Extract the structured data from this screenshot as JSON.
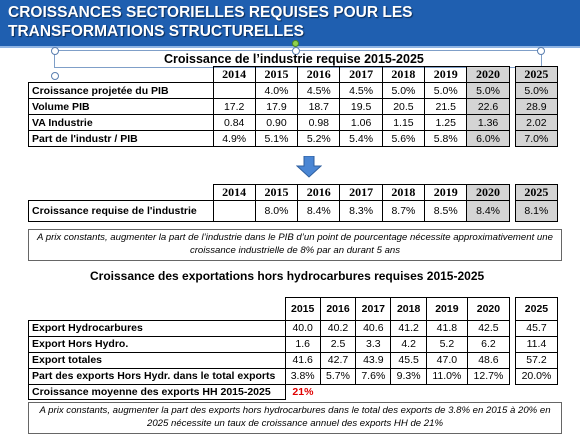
{
  "title": "CROISSANCES SECTORIELLES REQUISES POUR LES TRANSFORMATIONS STRUCTURELLES",
  "section1": {
    "heading": "Croissance de l’industrie requise 2015-2025",
    "years": [
      "2014",
      "2015",
      "2016",
      "2017",
      "2018",
      "2019",
      "2020",
      "2025"
    ],
    "rows": [
      {
        "label": "Croissance projetée du PIB",
        "values": [
          "",
          "4.0%",
          "4.5%",
          "4.5%",
          "5.0%",
          "5.0%",
          "5.0%",
          "5.0%"
        ]
      },
      {
        "label": "Volume PIB",
        "values": [
          "17.2",
          "17.9",
          "18.7",
          "19.5",
          "20.5",
          "21.5",
          "22.6",
          "28.9"
        ]
      },
      {
        "label": "VA Industrie",
        "values": [
          "0.84",
          "0.90",
          "0.98",
          "1.06",
          "1.15",
          "1.25",
          "1.36",
          "2.02"
        ]
      },
      {
        "label": "Part de l'industr  / PIB",
        "values": [
          "4.9%",
          "5.1%",
          "5.2%",
          "5.4%",
          "5.6%",
          "5.8%",
          "6.0%",
          "7.0%"
        ]
      }
    ]
  },
  "section2": {
    "years": [
      "2014",
      "2015",
      "2016",
      "2017",
      "2018",
      "2019",
      "2020",
      "2025"
    ],
    "row": {
      "label": "Croissance requise de l'industrie",
      "values": [
        "",
        "8.0%",
        "8.4%",
        "8.3%",
        "8.7%",
        "8.5%",
        "8.4%",
        "8.1%"
      ]
    },
    "note": "A prix constants, augmenter la part de l’industrie dans le PIB d’un point de pourcentage nécessite approximativement une croissance industrielle de 8% par an durant 5 ans"
  },
  "section3": {
    "heading": "Croissance des exportations hors hydrocarbures requises 2015-2025",
    "years": [
      "2015",
      "2016",
      "2017",
      "2018",
      "2019",
      "2020",
      "2025"
    ],
    "rows": [
      {
        "label": "Export Hydrocarbures",
        "values": [
          "40.0",
          "40.2",
          "40.6",
          "41.2",
          "41.8",
          "42.5",
          "45.7"
        ]
      },
      {
        "label": "Export Hors Hydro.",
        "values": [
          "1.6",
          "2.5",
          "3.3",
          "4.2",
          "5.2",
          "6.2",
          "11.4"
        ]
      },
      {
        "label": "Export totales",
        "values": [
          "41.6",
          "42.7",
          "43.9",
          "45.5",
          "47.0",
          "48.6",
          "57.2"
        ]
      },
      {
        "label": "Part des exports Hors Hydr. dans le total exports",
        "values": [
          "3.8%",
          "5.7%",
          "7.6%",
          "9.3%",
          "11.0%",
          "12.7%",
          "20.0%"
        ]
      }
    ],
    "moyenne": {
      "label": "Croissance moyenne des exports HH 2015-2025",
      "value": "21%"
    },
    "note": "A prix constants, augmenter la part des exports hors hydrocarbures dans le total des exports de 3.8% en 2015 à 20% en 2025 nécessite un taux de croissance annuel des exports HH de 21%"
  },
  "colors": {
    "title_bg": "#1f5fb0",
    "highlight": "#d4d4d4",
    "arrow": "#4a86d4",
    "red": "#e00000"
  }
}
